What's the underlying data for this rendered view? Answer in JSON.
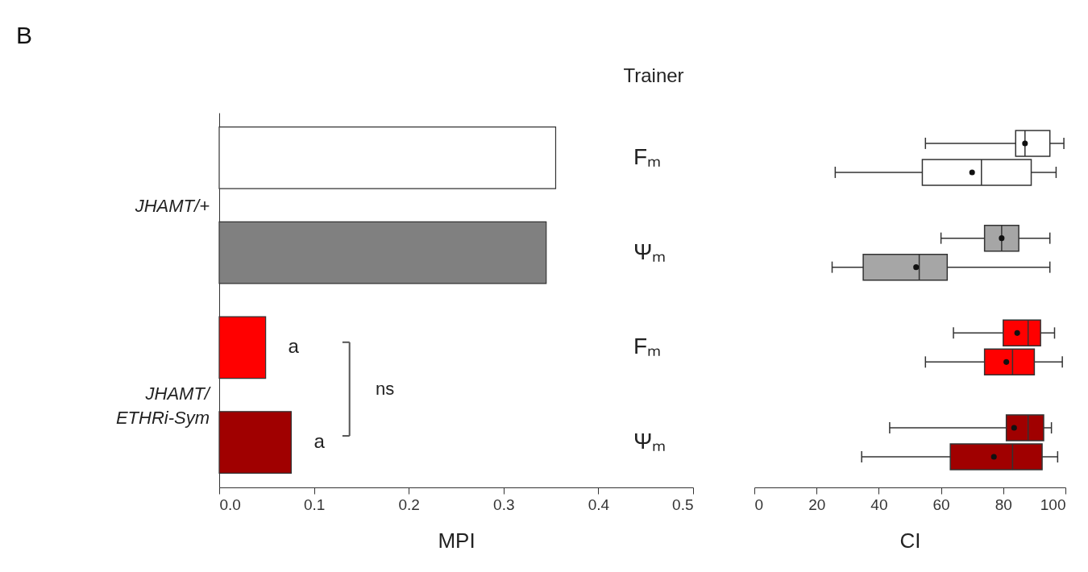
{
  "chart_data": [
    {
      "type": "bar",
      "orientation": "horizontal",
      "xlabel": "MPI",
      "categories": [
        null,
        null,
        null,
        null
      ],
      "tick_labels": "x",
      "values": [
        0.355,
        0.345,
        0.049,
        0.076
      ],
      "colors": [
        "#ffffff",
        "#808080",
        "#ff0000",
        "#a00000"
      ],
      "value_labels": [
        null,
        null,
        "a",
        "a"
      ],
      "xlim": [
        0,
        0.5
      ],
      "xticks": [
        {
          "value": 0,
          "label": "0.0"
        },
        0.1,
        0.2,
        0.3,
        0.4,
        0.5
      ],
      "annotations": [
        "B",
        "JHAMT/+",
        "JHAMT/\nETHRi-Sym",
        "ns"
      ]
    },
    {
      "type": "box",
      "orientation": "horizontal",
      "xlabel": "CI",
      "ylabel": "Trainer",
      "categories": [
        "Fₘ",
        "Ψₘ",
        "Fₘ",
        "Ψₘ"
      ],
      "series": [
        {
          "colors": [
            "#ffffff",
            "#a6a6a6",
            "#ff0000",
            "#a00000"
          ],
          "boxes": [
            {
              "low": 55,
              "q1": 84,
              "median": 87,
              "q3": 95,
              "high": 99.5,
              "mean": 87
            },
            {
              "low": 60,
              "q1": 74,
              "median": 79.5,
              "q3": 85,
              "high": 95,
              "mean": 79.5
            },
            {
              "low": 64,
              "q1": 80,
              "median": 88,
              "q3": 92,
              "high": 96.5,
              "mean": 84.5
            },
            {
              "low": 43.5,
              "q1": 81,
              "median": 88,
              "q3": 93,
              "high": 95.5,
              "mean": 83.5
            }
          ]
        },
        {
          "colors": [
            "#ffffff",
            "#a6a6a6",
            "#ff0000",
            "#a00000"
          ],
          "boxes": [
            {
              "low": 26,
              "q1": 54,
              "median": 73,
              "q3": 89,
              "high": 97,
              "mean": 70
            },
            {
              "low": 25,
              "q1": 35,
              "median": 53,
              "q3": 62,
              "high": 95,
              "mean": 52
            },
            {
              "low": 55,
              "q1": 74,
              "median": 83,
              "q3": 90,
              "high": 99,
              "mean": 81
            },
            {
              "low": 34.5,
              "q1": 63,
              "median": 83,
              "q3": 92.5,
              "high": 97.5,
              "mean": 77
            }
          ]
        }
      ],
      "xlim": [
        0,
        100
      ],
      "xticks": [
        0,
        20,
        40,
        60,
        80,
        100
      ]
    }
  ]
}
